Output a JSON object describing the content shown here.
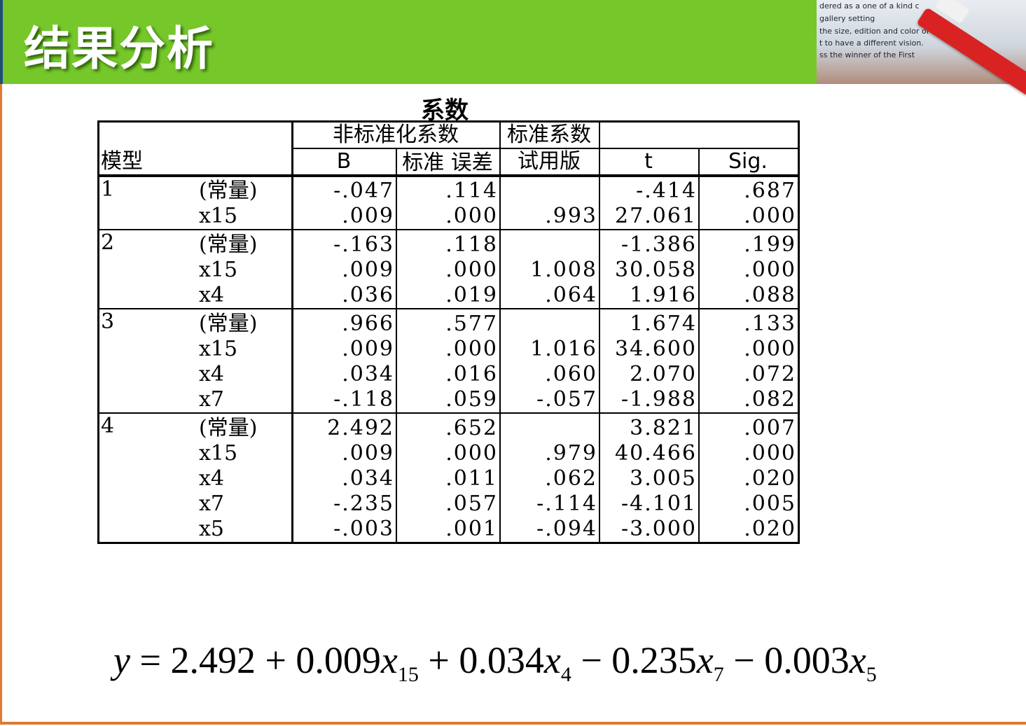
{
  "slide": {
    "title": "结果分析",
    "photo_text": [
      "dered as a one of a kind c",
      "gallery setting",
      "the size, edition and color of the",
      "t to have a different vision.",
      "ss the winner of the First"
    ],
    "colors": {
      "header": "#76c82a",
      "accent": "#e07a2e"
    }
  },
  "table": {
    "caption": "系数",
    "headers": {
      "model": "模型",
      "unstd": "非标准化系数",
      "std": "标准系数",
      "b": "B",
      "se": "标准 误差",
      "trial": "试用版",
      "t": "t",
      "sig": "Sig."
    },
    "rows": [
      {
        "model": "1",
        "var": "(常量)",
        "b": "-.047",
        "se": ".114",
        "beta": "",
        "t": "-.414",
        "sig": ".687"
      },
      {
        "model": "",
        "var": "x15",
        "b": ".009",
        "se": ".000",
        "beta": ".993",
        "t": "27.061",
        "sig": ".000"
      },
      {
        "model": "2",
        "var": "(常量)",
        "b": "-.163",
        "se": ".118",
        "beta": "",
        "t": "-1.386",
        "sig": ".199"
      },
      {
        "model": "",
        "var": "x15",
        "b": ".009",
        "se": ".000",
        "beta": "1.008",
        "t": "30.058",
        "sig": ".000"
      },
      {
        "model": "",
        "var": "x4",
        "b": ".036",
        "se": ".019",
        "beta": ".064",
        "t": "1.916",
        "sig": ".088"
      },
      {
        "model": "3",
        "var": "(常量)",
        "b": ".966",
        "se": ".577",
        "beta": "",
        "t": "1.674",
        "sig": ".133"
      },
      {
        "model": "",
        "var": "x15",
        "b": ".009",
        "se": ".000",
        "beta": "1.016",
        "t": "34.600",
        "sig": ".000"
      },
      {
        "model": "",
        "var": "x4",
        "b": ".034",
        "se": ".016",
        "beta": ".060",
        "t": "2.070",
        "sig": ".072"
      },
      {
        "model": "",
        "var": "x7",
        "b": "-.118",
        "se": ".059",
        "beta": "-.057",
        "t": "-1.988",
        "sig": ".082"
      },
      {
        "model": "4",
        "var": "(常量)",
        "b": "2.492",
        "se": ".652",
        "beta": "",
        "t": "3.821",
        "sig": ".007"
      },
      {
        "model": "",
        "var": "x15",
        "b": ".009",
        "se": ".000",
        "beta": ".979",
        "t": "40.466",
        "sig": ".000"
      },
      {
        "model": "",
        "var": "x4",
        "b": ".034",
        "se": ".011",
        "beta": ".062",
        "t": "3.005",
        "sig": ".020"
      },
      {
        "model": "",
        "var": "x7",
        "b": "-.235",
        "se": ".057",
        "beta": "-.114",
        "t": "-4.101",
        "sig": ".005"
      },
      {
        "model": "",
        "var": "x5",
        "b": "-.003",
        "se": ".001",
        "beta": "-.094",
        "t": "-3.000",
        "sig": ".020"
      }
    ]
  },
  "formula": {
    "lhs": "y",
    "eq": " = ",
    "c0": "2.492",
    "op1": " + ",
    "c1": "0.009",
    "v1": "x",
    "s1": "15",
    "op2": " + ",
    "c2": "0.034",
    "v2": "x",
    "s2": "4",
    "op3": " − ",
    "c3": "0.235",
    "v3": "x",
    "s3": "7",
    "op4": " − ",
    "c4": "0.003",
    "v4": "x",
    "s4": "5"
  }
}
